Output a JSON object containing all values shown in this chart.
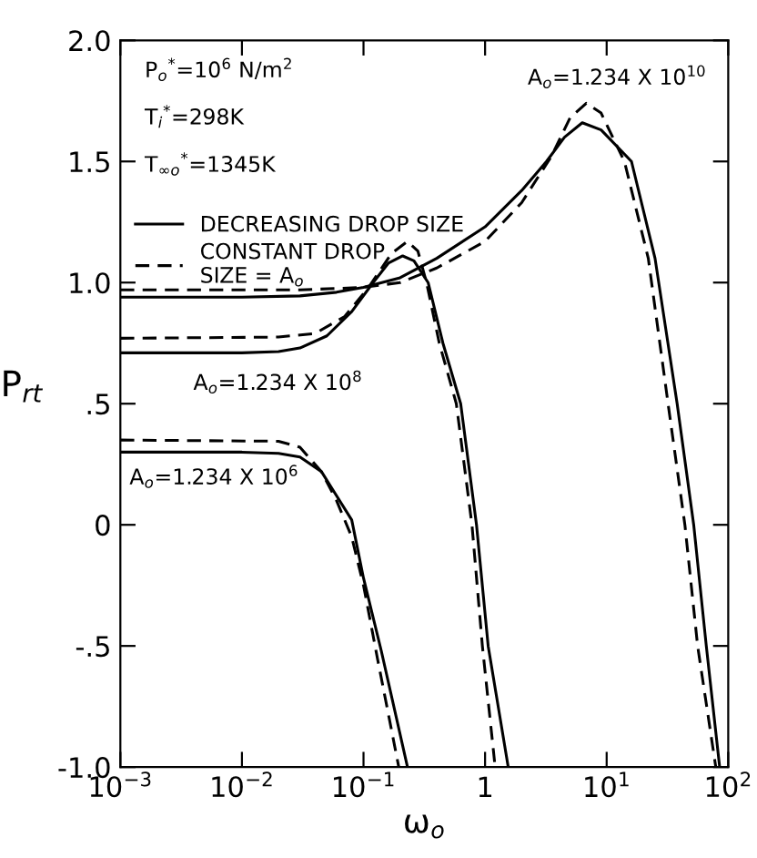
{
  "chart_data": {
    "type": "line",
    "xlabel": "ω$_{o}$",
    "ylabel": "P$_{rt}$",
    "log": "x",
    "xlim": [
      0.001,
      100
    ],
    "ylim": [
      -1.0,
      2.0
    ],
    "xticks": [
      {
        "value": 0.001,
        "label": "10$^{−3}$"
      },
      {
        "value": 0.01,
        "label": "10$^{−2}$"
      },
      {
        "value": 0.1,
        "label": "10$^{−1}$"
      },
      1,
      {
        "value": 10,
        "label": "10$^{1}$"
      },
      {
        "value": 100,
        "label": "10$^{2}$"
      }
    ],
    "yticks": [
      {
        "value": -1.0,
        "label": "-1.0"
      },
      {
        "value": -0.5,
        "label": "-.5"
      },
      0,
      {
        "value": 0.5,
        "label": ".5"
      },
      {
        "value": 1.0,
        "label": "1.0"
      },
      {
        "value": 1.5,
        "label": "1.5"
      },
      {
        "value": 2.0,
        "label": "2.0"
      }
    ],
    "grid": false,
    "legend": "top left",
    "marker": "none",
    "series": [
      {
        "name": "DECREASING DROP SIZE",
        "color": "#000000",
        "line_style": "solid",
        "x": [
          0.001,
          0.01,
          0.02,
          0.03,
          0.045,
          0.06,
          0.08,
          0.1,
          0.14,
          0.23
        ],
        "values": [
          0.3,
          0.3,
          0.295,
          0.28,
          0.22,
          0.12,
          0.02,
          -0.22,
          -0.52,
          -1.0
        ]
      },
      {
        "name": "CONSTANT DROP\nSIZE = A$_{o}$",
        "color": "#000000",
        "line_style": "dashed",
        "x": [
          0.001,
          0.02,
          0.03,
          0.045,
          0.06,
          0.08,
          0.1,
          0.13,
          0.195
        ],
        "values": [
          0.35,
          0.345,
          0.32,
          0.22,
          0.1,
          -0.05,
          -0.25,
          -0.55,
          -1.0
        ]
      },
      {
        "color": "#000000",
        "line_style": "solid",
        "x": [
          0.001,
          0.01,
          0.02,
          0.03,
          0.05,
          0.08,
          0.12,
          0.16,
          0.21,
          0.26,
          0.34,
          0.45,
          0.63,
          0.85,
          1.06,
          1.55
        ],
        "values": [
          0.71,
          0.71,
          0.715,
          0.73,
          0.78,
          0.88,
          1.0,
          1.08,
          1.11,
          1.09,
          1.0,
          0.75,
          0.5,
          0.0,
          -0.5,
          -1.0
        ]
      },
      {
        "color": "#000000",
        "line_style": "dashed",
        "x": [
          0.001,
          0.02,
          0.04,
          0.07,
          0.11,
          0.17,
          0.23,
          0.28,
          0.33,
          0.42,
          0.58,
          0.78,
          0.95,
          1.21
        ],
        "values": [
          0.77,
          0.775,
          0.79,
          0.86,
          0.98,
          1.12,
          1.17,
          1.13,
          1.0,
          0.75,
          0.5,
          0.0,
          -0.5,
          -1.0
        ]
      },
      {
        "color": "#000000",
        "line_style": "solid",
        "x": [
          0.001,
          0.01,
          0.03,
          0.06,
          0.1,
          0.2,
          0.4,
          1,
          2,
          3.2,
          4.5,
          6.3,
          9,
          16,
          25,
          38,
          52,
          66,
          85
        ],
        "values": [
          0.94,
          0.94,
          0.945,
          0.96,
          0.98,
          1.02,
          1.1,
          1.23,
          1.38,
          1.5,
          1.6,
          1.66,
          1.63,
          1.5,
          1.1,
          0.5,
          0.0,
          -0.5,
          -1.0
        ]
      },
      {
        "color": "#000000",
        "line_style": "dashed",
        "x": [
          0.001,
          0.03,
          0.1,
          0.2,
          0.4,
          1,
          2,
          3.5,
          5,
          6.8,
          9,
          14,
          22,
          32,
          44,
          56,
          79
        ],
        "values": [
          0.97,
          0.97,
          0.98,
          1.0,
          1.06,
          1.17,
          1.33,
          1.52,
          1.68,
          1.74,
          1.7,
          1.5,
          1.1,
          0.5,
          0.0,
          -0.5,
          -1.0
        ]
      }
    ],
    "annotations": [
      "P$_{o}$$^{*}$=10$^{6}$ N/m$^{2}$",
      "T$_{i}$$^{*}$=298K",
      "T$_{∞o}$$^{*}$=1345K",
      "A$_{o}$=1.234 X 10$^{6}$",
      "A$_{o}$=1.234 X 10$^{8}$",
      "A$_{o}$=1.234 X 10$^{10}$"
    ]
  }
}
